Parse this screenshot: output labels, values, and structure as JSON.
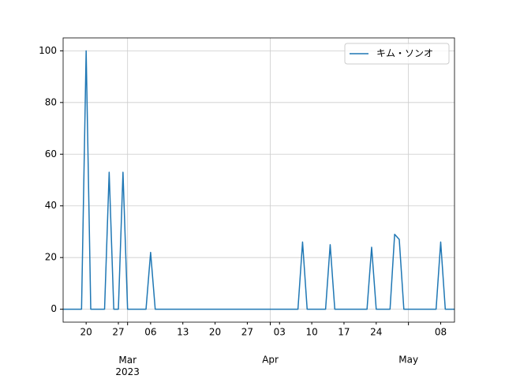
{
  "chart_data": {
    "type": "line",
    "x": [
      "2023-02-15",
      "2023-02-16",
      "2023-02-17",
      "2023-02-18",
      "2023-02-19",
      "2023-02-20",
      "2023-02-21",
      "2023-02-22",
      "2023-02-23",
      "2023-02-24",
      "2023-02-25",
      "2023-02-26",
      "2023-02-27",
      "2023-02-28",
      "2023-03-01",
      "2023-03-02",
      "2023-03-03",
      "2023-03-04",
      "2023-03-05",
      "2023-03-06",
      "2023-03-07",
      "2023-03-08",
      "2023-03-09",
      "2023-03-10",
      "2023-03-11",
      "2023-03-12",
      "2023-03-13",
      "2023-03-14",
      "2023-03-15",
      "2023-03-16",
      "2023-03-17",
      "2023-03-18",
      "2023-03-19",
      "2023-03-20",
      "2023-03-21",
      "2023-03-22",
      "2023-03-23",
      "2023-03-24",
      "2023-03-25",
      "2023-03-26",
      "2023-03-27",
      "2023-03-28",
      "2023-03-29",
      "2023-03-30",
      "2023-03-31",
      "2023-04-01",
      "2023-04-02",
      "2023-04-03",
      "2023-04-04",
      "2023-04-05",
      "2023-04-06",
      "2023-04-07",
      "2023-04-08",
      "2023-04-09",
      "2023-04-10",
      "2023-04-11",
      "2023-04-12",
      "2023-04-13",
      "2023-04-14",
      "2023-04-15",
      "2023-04-16",
      "2023-04-17",
      "2023-04-18",
      "2023-04-19",
      "2023-04-20",
      "2023-04-21",
      "2023-04-22",
      "2023-04-23",
      "2023-04-24",
      "2023-04-25",
      "2023-04-26",
      "2023-04-27",
      "2023-04-28",
      "2023-04-29",
      "2023-04-30",
      "2023-05-01",
      "2023-05-02",
      "2023-05-03",
      "2023-05-04",
      "2023-05-05",
      "2023-05-06",
      "2023-05-07",
      "2023-05-08",
      "2023-05-09",
      "2023-05-10",
      "2023-05-11"
    ],
    "series": [
      {
        "name": "キム・ソンオ",
        "color": "#1f77b4",
        "values": [
          0,
          0,
          0,
          0,
          0,
          100,
          0,
          0,
          0,
          0,
          53,
          0,
          0,
          53,
          0,
          0,
          0,
          0,
          0,
          22,
          0,
          0,
          0,
          0,
          0,
          0,
          0,
          0,
          0,
          0,
          0,
          0,
          0,
          0,
          0,
          0,
          0,
          0,
          0,
          0,
          0,
          0,
          0,
          0,
          0,
          0,
          0,
          0,
          0,
          0,
          0,
          0,
          26,
          0,
          0,
          0,
          0,
          0,
          25,
          0,
          0,
          0,
          0,
          0,
          0,
          0,
          0,
          24,
          0,
          0,
          0,
          0,
          29,
          27,
          0,
          0,
          0,
          0,
          0,
          0,
          0,
          0,
          26,
          0,
          0,
          0
        ]
      }
    ],
    "xlim": [
      "2023-02-15",
      "2023-05-11"
    ],
    "xticks": [
      {
        "value": "2023-03-01",
        "label": "Mar\n2023"
      },
      {
        "value": "2023-04-01",
        "label": "Apr"
      },
      {
        "value": "2023-05-01",
        "label": "May"
      }
    ],
    "xminorticks": [
      {
        "value": "2023-02-20",
        "label": "20"
      },
      {
        "value": "2023-02-27",
        "label": "27"
      },
      {
        "value": "2023-03-06",
        "label": "06"
      },
      {
        "value": "2023-03-13",
        "label": "13"
      },
      {
        "value": "2023-03-20",
        "label": "20"
      },
      {
        "value": "2023-03-27",
        "label": "27"
      },
      {
        "value": "2023-04-03",
        "label": "03"
      },
      {
        "value": "2023-04-10",
        "label": "10"
      },
      {
        "value": "2023-04-17",
        "label": "17"
      },
      {
        "value": "2023-04-24",
        "label": "24"
      },
      {
        "value": "2023-05-08",
        "label": "08"
      }
    ],
    "ylim": [
      -5,
      105
    ],
    "yticks": [
      0,
      20,
      40,
      60,
      80,
      100
    ],
    "grid": true,
    "legend": "upper right"
  }
}
